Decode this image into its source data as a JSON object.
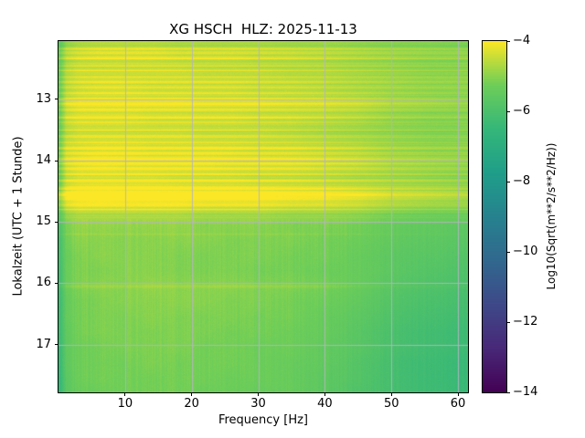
{
  "figure": {
    "title": "XG HSCH  HLZ: 2025-11-13"
  },
  "chart_data": {
    "type": "heatmap",
    "subtype": "spectrogram",
    "title": "XG HSCH  HLZ: 2025-11-13",
    "xlabel": "Frequency [Hz]",
    "ylabel": "Lokalzeit (UTC + 1 Stunde)",
    "colorbar_label": "Log10(Sqrt(m**2/s**2/Hz))",
    "colormap": "viridis",
    "grid": true,
    "x_ticks": [
      10,
      20,
      30,
      40,
      50,
      60
    ],
    "y_ticks": [
      13,
      14,
      15,
      16,
      17
    ],
    "colorbar_ticks": [
      -4,
      -6,
      -8,
      -10,
      -12,
      -14
    ],
    "xlim": [
      0,
      61.5
    ],
    "time_range": [
      12.05,
      17.78
    ],
    "clim": [
      -14,
      -4
    ],
    "freq_bins": [
      0.3,
      1.2,
      3,
      6,
      10,
      14,
      18,
      22,
      26,
      30,
      35,
      40,
      45,
      50,
      56,
      62
    ],
    "time_bins": [
      12.05,
      12.3,
      12.55,
      12.8,
      13.05,
      13.3,
      13.55,
      13.8,
      14.05,
      14.3,
      14.55,
      14.8,
      15.05,
      15.3,
      15.55,
      15.8,
      16.05,
      16.3,
      16.55,
      16.8,
      17.05,
      17.3,
      17.55,
      17.78
    ],
    "values": [
      [
        -5.6,
        -5.0,
        -4.8,
        -4.7,
        -4.7,
        -4.7,
        -4.8,
        -4.8,
        -4.8,
        -4.8,
        -4.9,
        -4.9,
        -5.0,
        -5.1,
        -5.1,
        -5.2
      ],
      [
        -5.4,
        -4.7,
        -4.5,
        -4.4,
        -4.4,
        -4.4,
        -4.5,
        -4.5,
        -4.5,
        -4.6,
        -4.6,
        -4.7,
        -4.8,
        -4.9,
        -5.0,
        -5.0
      ],
      [
        -5.5,
        -4.8,
        -4.6,
        -4.6,
        -4.6,
        -4.6,
        -4.6,
        -4.7,
        -4.7,
        -4.7,
        -4.8,
        -4.8,
        -4.9,
        -5.0,
        -5.1,
        -5.1
      ],
      [
        -5.4,
        -4.7,
        -4.5,
        -4.4,
        -4.4,
        -4.5,
        -4.5,
        -4.5,
        -4.5,
        -4.6,
        -4.6,
        -4.7,
        -4.8,
        -4.9,
        -5.0,
        -5.0
      ],
      [
        -5.3,
        -4.5,
        -4.3,
        -4.3,
        -4.3,
        -4.3,
        -4.3,
        -4.4,
        -4.4,
        -4.4,
        -4.5,
        -4.5,
        -4.6,
        -4.8,
        -4.9,
        -5.0
      ],
      [
        -5.4,
        -4.6,
        -4.4,
        -4.4,
        -4.4,
        -4.5,
        -4.5,
        -4.5,
        -4.5,
        -4.6,
        -4.6,
        -4.7,
        -4.8,
        -5.0,
        -5.1,
        -5.1
      ],
      [
        -5.4,
        -4.7,
        -4.5,
        -4.5,
        -4.5,
        -4.5,
        -4.5,
        -4.6,
        -4.6,
        -4.6,
        -4.7,
        -4.8,
        -4.9,
        -5.0,
        -5.1,
        -5.1
      ],
      [
        -5.3,
        -4.5,
        -4.4,
        -4.3,
        -4.3,
        -4.4,
        -4.4,
        -4.4,
        -4.4,
        -4.5,
        -4.5,
        -4.6,
        -4.7,
        -4.9,
        -5.0,
        -5.0
      ],
      [
        -5.3,
        -4.5,
        -4.3,
        -4.2,
        -4.3,
        -4.3,
        -4.3,
        -4.3,
        -4.4,
        -4.4,
        -4.4,
        -4.5,
        -4.6,
        -4.8,
        -4.9,
        -5.0
      ],
      [
        -5.4,
        -4.6,
        -4.4,
        -4.4,
        -4.4,
        -4.4,
        -4.5,
        -4.5,
        -4.5,
        -4.6,
        -4.6,
        -4.7,
        -4.8,
        -4.9,
        -5.0,
        -5.1
      ],
      [
        -5.2,
        -4.4,
        -4.2,
        -4.1,
        -4.2,
        -4.2,
        -4.2,
        -4.3,
        -4.3,
        -4.3,
        -4.4,
        -4.4,
        -4.5,
        -4.7,
        -4.8,
        -4.9
      ],
      [
        -5.4,
        -4.7,
        -4.5,
        -4.5,
        -4.5,
        -4.5,
        -4.5,
        -4.6,
        -4.6,
        -4.6,
        -4.7,
        -4.7,
        -4.8,
        -5.0,
        -5.1,
        -5.1
      ],
      [
        -5.8,
        -5.1,
        -4.9,
        -4.9,
        -4.9,
        -4.9,
        -4.9,
        -5.0,
        -5.0,
        -5.0,
        -5.1,
        -5.1,
        -5.2,
        -5.4,
        -5.5,
        -5.6
      ],
      [
        -6.0,
        -5.2,
        -5.0,
        -5.0,
        -5.0,
        -5.0,
        -5.0,
        -5.0,
        -5.1,
        -5.1,
        -5.1,
        -5.2,
        -5.3,
        -5.5,
        -5.6,
        -5.7
      ],
      [
        -6.0,
        -5.3,
        -5.1,
        -5.0,
        -5.0,
        -5.0,
        -5.1,
        -5.1,
        -5.1,
        -5.1,
        -5.2,
        -5.2,
        -5.4,
        -5.6,
        -5.7,
        -5.8
      ],
      [
        -6.1,
        -5.3,
        -5.1,
        -5.1,
        -5.0,
        -5.0,
        -5.1,
        -5.1,
        -5.1,
        -5.2,
        -5.2,
        -5.3,
        -5.4,
        -5.6,
        -5.8,
        -5.9
      ],
      [
        -6.1,
        -5.3,
        -5.1,
        -5.0,
        -5.0,
        -4.9,
        -5.0,
        -5.0,
        -5.0,
        -5.1,
        -5.1,
        -5.2,
        -5.4,
        -5.7,
        -5.9,
        -6.0
      ],
      [
        -6.2,
        -5.4,
        -5.2,
        -5.1,
        -5.0,
        -5.0,
        -5.0,
        -5.0,
        -5.1,
        -5.1,
        -5.2,
        -5.3,
        -5.5,
        -5.8,
        -6.0,
        -6.1
      ],
      [
        -6.2,
        -5.4,
        -5.2,
        -5.1,
        -5.1,
        -5.0,
        -5.1,
        -5.1,
        -5.1,
        -5.2,
        -5.2,
        -5.4,
        -5.6,
        -5.9,
        -6.1,
        -6.2
      ],
      [
        -6.2,
        -5.5,
        -5.2,
        -5.1,
        -5.1,
        -5.1,
        -5.1,
        -5.1,
        -5.2,
        -5.2,
        -5.3,
        -5.4,
        -5.7,
        -6.0,
        -6.2,
        -6.3
      ],
      [
        -6.3,
        -5.5,
        -5.3,
        -5.2,
        -5.1,
        -5.1,
        -5.1,
        -5.2,
        -5.2,
        -5.3,
        -5.3,
        -5.5,
        -5.7,
        -6.0,
        -6.2,
        -6.3
      ],
      [
        -6.3,
        -5.5,
        -5.3,
        -5.2,
        -5.2,
        -5.1,
        -5.2,
        -5.2,
        -5.2,
        -5.3,
        -5.4,
        -5.5,
        -5.8,
        -6.1,
        -6.3,
        -6.4
      ],
      [
        -6.4,
        -5.6,
        -5.3,
        -5.2,
        -5.2,
        -5.2,
        -5.2,
        -5.2,
        -5.3,
        -5.3,
        -5.4,
        -5.6,
        -5.8,
        -6.1,
        -6.3,
        -6.4
      ],
      [
        -6.4,
        -5.6,
        -5.4,
        -5.3,
        -5.2,
        -5.2,
        -5.2,
        -5.3,
        -5.3,
        -5.4,
        -5.4,
        -5.6,
        -5.9,
        -6.1,
        -6.3,
        -6.4
      ]
    ],
    "stripes": [
      {
        "t": 12.17,
        "a": 0.45,
        "w": 0.015
      },
      {
        "t": 12.24,
        "a": 0.35,
        "w": 0.012
      },
      {
        "t": 12.33,
        "a": 0.5,
        "w": 0.015
      },
      {
        "t": 12.45,
        "a": 0.35,
        "w": 0.012
      },
      {
        "t": 12.53,
        "a": 0.45,
        "w": 0.015
      },
      {
        "t": 12.63,
        "a": 0.4,
        "w": 0.012
      },
      {
        "t": 12.72,
        "a": 0.5,
        "w": 0.015
      },
      {
        "t": 12.8,
        "a": 0.35,
        "w": 0.012
      },
      {
        "t": 12.9,
        "a": 0.45,
        "w": 0.012
      },
      {
        "t": 13.0,
        "a": 0.6,
        "w": 0.018
      },
      {
        "t": 13.08,
        "a": 0.55,
        "w": 0.015
      },
      {
        "t": 13.17,
        "a": 0.4,
        "w": 0.012
      },
      {
        "t": 13.3,
        "a": 0.55,
        "w": 0.015
      },
      {
        "t": 13.38,
        "a": 0.45,
        "w": 0.012
      },
      {
        "t": 13.5,
        "a": 0.4,
        "w": 0.012
      },
      {
        "t": 13.6,
        "a": 0.5,
        "w": 0.015
      },
      {
        "t": 13.7,
        "a": 0.45,
        "w": 0.012
      },
      {
        "t": 13.8,
        "a": 0.55,
        "w": 0.015
      },
      {
        "t": 13.88,
        "a": 0.5,
        "w": 0.012
      },
      {
        "t": 13.97,
        "a": 0.6,
        "w": 0.015
      },
      {
        "t": 14.05,
        "a": 0.5,
        "w": 0.015
      },
      {
        "t": 14.13,
        "a": 0.45,
        "w": 0.012
      },
      {
        "t": 14.22,
        "a": 0.4,
        "w": 0.012
      },
      {
        "t": 14.33,
        "a": 0.5,
        "w": 0.015
      },
      {
        "t": 14.45,
        "a": 0.55,
        "w": 0.02
      },
      {
        "t": 14.55,
        "a": 0.65,
        "w": 0.03
      },
      {
        "t": 14.63,
        "a": 0.6,
        "w": 0.025
      },
      {
        "t": 14.72,
        "a": 0.5,
        "w": 0.02
      },
      {
        "t": 14.8,
        "a": 0.4,
        "w": 0.015
      },
      {
        "t": 15.2,
        "a": 0.15,
        "w": 0.01
      },
      {
        "t": 16.05,
        "a": 0.2,
        "w": 0.02
      }
    ],
    "viridis_anchors": [
      "#440154",
      "#482878",
      "#3e4989",
      "#31688e",
      "#26828e",
      "#1f9e89",
      "#35b779",
      "#6ece58",
      "#fde725"
    ]
  }
}
